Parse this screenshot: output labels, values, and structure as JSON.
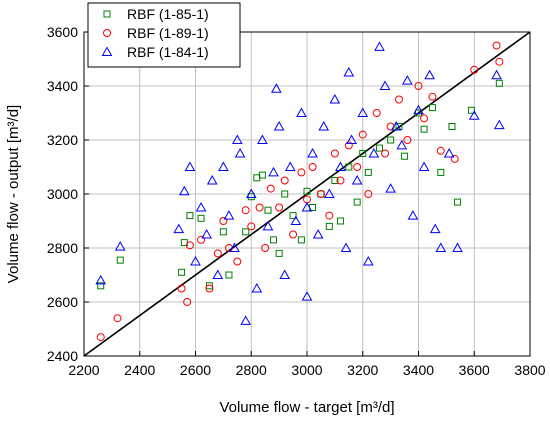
{
  "chart_data": {
    "type": "scatter",
    "xlabel": "Volume flow - target [m³/d]",
    "ylabel": "Volume flow - output [m³/d]",
    "xlim": [
      2200,
      3800
    ],
    "ylim": [
      2400,
      3600
    ],
    "xticks": [
      "2200",
      "2400",
      "2600",
      "2800",
      "3000",
      "3200",
      "3400",
      "3600",
      "3800"
    ],
    "yticks": [
      "2400",
      "2600",
      "2800",
      "3000",
      "3200",
      "3400",
      "3600"
    ],
    "grid": true,
    "legend_position": "top-left",
    "reference_line": {
      "x": [
        2200,
        3800
      ],
      "y": [
        2400,
        3600
      ],
      "color": "#000000"
    },
    "series": [
      {
        "name": "RBF (1-85-1)",
        "marker": "square",
        "color": "#008000",
        "points": [
          [
            2260,
            2660
          ],
          [
            2330,
            2755
          ],
          [
            2560,
            2820
          ],
          [
            2550,
            2710
          ],
          [
            2580,
            2920
          ],
          [
            2620,
            2910
          ],
          [
            2650,
            2660
          ],
          [
            2700,
            2860
          ],
          [
            2720,
            2700
          ],
          [
            2780,
            2860
          ],
          [
            2800,
            2990
          ],
          [
            2820,
            3060
          ],
          [
            2840,
            3070
          ],
          [
            2860,
            2940
          ],
          [
            2880,
            2830
          ],
          [
            2900,
            2780
          ],
          [
            2920,
            3000
          ],
          [
            2950,
            2920
          ],
          [
            2980,
            2830
          ],
          [
            3000,
            3010
          ],
          [
            3020,
            2950
          ],
          [
            3050,
            3000
          ],
          [
            3080,
            2880
          ],
          [
            3100,
            3050
          ],
          [
            3120,
            2900
          ],
          [
            3150,
            3100
          ],
          [
            3180,
            2970
          ],
          [
            3200,
            3150
          ],
          [
            3220,
            3080
          ],
          [
            3260,
            3170
          ],
          [
            3300,
            3200
          ],
          [
            3330,
            3250
          ],
          [
            3350,
            3140
          ],
          [
            3400,
            3300
          ],
          [
            3420,
            3240
          ],
          [
            3450,
            3320
          ],
          [
            3480,
            3080
          ],
          [
            3520,
            3250
          ],
          [
            3540,
            2970
          ],
          [
            3590,
            3310
          ],
          [
            3690,
            3410
          ]
        ]
      },
      {
        "name": "RBF (1-89-1)",
        "marker": "circle",
        "color": "#ff0000",
        "points": [
          [
            2260,
            2470
          ],
          [
            2320,
            2540
          ],
          [
            2550,
            2650
          ],
          [
            2570,
            2600
          ],
          [
            2580,
            2810
          ],
          [
            2620,
            2830
          ],
          [
            2650,
            2650
          ],
          [
            2680,
            2780
          ],
          [
            2700,
            2900
          ],
          [
            2720,
            2800
          ],
          [
            2750,
            2750
          ],
          [
            2780,
            2940
          ],
          [
            2800,
            2880
          ],
          [
            2830,
            2950
          ],
          [
            2850,
            2800
          ],
          [
            2870,
            3020
          ],
          [
            2900,
            2950
          ],
          [
            2920,
            3050
          ],
          [
            2950,
            2850
          ],
          [
            2980,
            3080
          ],
          [
            3000,
            2980
          ],
          [
            3020,
            3100
          ],
          [
            3050,
            3000
          ],
          [
            3080,
            2920
          ],
          [
            3100,
            3150
          ],
          [
            3120,
            3050
          ],
          [
            3150,
            3180
          ],
          [
            3180,
            3100
          ],
          [
            3200,
            3220
          ],
          [
            3220,
            3000
          ],
          [
            3250,
            3300
          ],
          [
            3280,
            3150
          ],
          [
            3300,
            3250
          ],
          [
            3330,
            3350
          ],
          [
            3360,
            3200
          ],
          [
            3400,
            3400
          ],
          [
            3420,
            3280
          ],
          [
            3450,
            3360
          ],
          [
            3480,
            3160
          ],
          [
            3530,
            3130
          ],
          [
            3600,
            3460
          ],
          [
            3680,
            3550
          ],
          [
            3690,
            3490
          ]
        ]
      },
      {
        "name": "RBF (1-84-1)",
        "marker": "triangle",
        "color": "#0000ff",
        "points": [
          [
            2260,
            2680
          ],
          [
            2330,
            2805
          ],
          [
            2540,
            2870
          ],
          [
            2560,
            3010
          ],
          [
            2580,
            3100
          ],
          [
            2600,
            2750
          ],
          [
            2620,
            2950
          ],
          [
            2640,
            2850
          ],
          [
            2660,
            3050
          ],
          [
            2680,
            2700
          ],
          [
            2700,
            3100
          ],
          [
            2720,
            2920
          ],
          [
            2740,
            2800
          ],
          [
            2760,
            3150
          ],
          [
            2780,
            2530
          ],
          [
            2800,
            3000
          ],
          [
            2820,
            2650
          ],
          [
            2840,
            3200
          ],
          [
            2860,
            2880
          ],
          [
            2880,
            3080
          ],
          [
            2900,
            3250
          ],
          [
            2920,
            2700
          ],
          [
            2940,
            3100
          ],
          [
            2960,
            2900
          ],
          [
            2980,
            3300
          ],
          [
            3000,
            2950
          ],
          [
            3020,
            3150
          ],
          [
            3040,
            2850
          ],
          [
            3060,
            3250
          ],
          [
            3080,
            3000
          ],
          [
            3100,
            3350
          ],
          [
            3120,
            3100
          ],
          [
            3140,
            2800
          ],
          [
            3160,
            3200
          ],
          [
            3180,
            3050
          ],
          [
            3200,
            3300
          ],
          [
            3220,
            2750
          ],
          [
            3240,
            3150
          ],
          [
            3260,
            3545
          ],
          [
            3280,
            3400
          ],
          [
            3300,
            3020
          ],
          [
            3320,
            3250
          ],
          [
            3340,
            3180
          ],
          [
            3360,
            3420
          ],
          [
            3380,
            2920
          ],
          [
            3400,
            3310
          ],
          [
            3420,
            3100
          ],
          [
            3440,
            3440
          ],
          [
            3460,
            2870
          ],
          [
            3480,
            2800
          ],
          [
            3510,
            3150
          ],
          [
            3540,
            2800
          ],
          [
            3600,
            3290
          ],
          [
            3680,
            3440
          ],
          [
            3690,
            3255
          ],
          [
            2890,
            3390
          ],
          [
            3000,
            2620
          ],
          [
            2750,
            3200
          ],
          [
            3150,
            3450
          ]
        ]
      }
    ]
  }
}
